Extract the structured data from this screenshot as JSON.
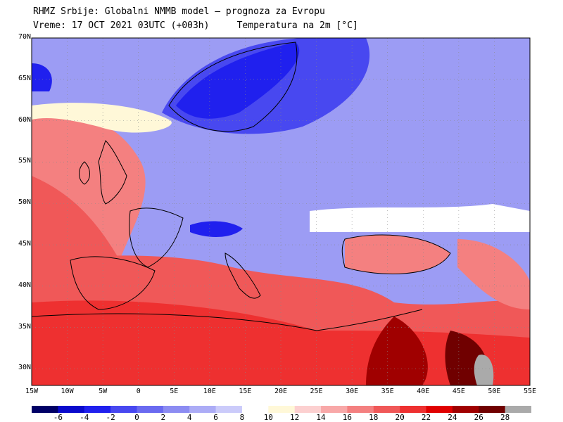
{
  "header": {
    "line1": "RHMZ Srbije: Globalni NMMB model — prognoza za Evropu",
    "line2_time": "Vreme: 17 OCT 2021 03UTC (+003h)",
    "line2_var": "Temperatura na 2m [°C]"
  },
  "map": {
    "lat_labels": [
      "70N",
      "65N",
      "60N",
      "55N",
      "50N",
      "45N",
      "40N",
      "35N",
      "30N"
    ],
    "lat_values": [
      70,
      65,
      60,
      55,
      50,
      45,
      40,
      35,
      30
    ],
    "lon_labels": [
      "15W",
      "10W",
      "5W",
      "0",
      "5E",
      "10E",
      "15E",
      "20E",
      "25E",
      "30E",
      "35E",
      "40E",
      "45E",
      "50E",
      "55E"
    ],
    "lon_values": [
      -15,
      -10,
      -5,
      0,
      5,
      10,
      15,
      20,
      25,
      30,
      35,
      40,
      45,
      50,
      55
    ]
  },
  "colorbar": {
    "labels": [
      "-6",
      "-4",
      "-2",
      "0",
      "2",
      "4",
      "6",
      "8",
      "10",
      "12",
      "14",
      "16",
      "18",
      "20",
      "22",
      "24",
      "26",
      "28"
    ],
    "colors": [
      "#000066",
      "#0a0acc",
      "#2020ee",
      "#4848f0",
      "#6a6af0",
      "#8c8cf2",
      "#acacf6",
      "#cbcbfa",
      "#ffffff",
      "#fff8d8",
      "#fcd0d0",
      "#f8a8a8",
      "#f48080",
      "#f05858",
      "#ee3030",
      "#e00000",
      "#a00000",
      "#700000",
      "#aaaaaa"
    ]
  }
}
